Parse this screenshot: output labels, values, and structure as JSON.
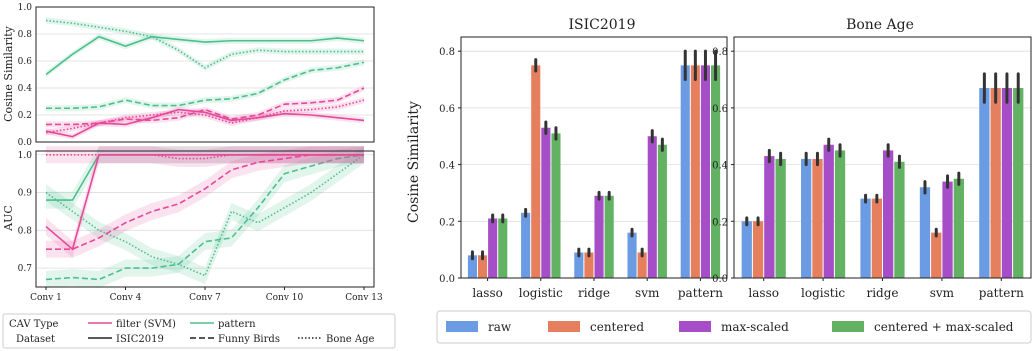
{
  "colors": {
    "filter": "#e6489a",
    "pattern": "#4cbf8c",
    "raw": "#6a9be3",
    "centered": "#e57f5e",
    "max_scaled": "#a64ec8",
    "centered_max_scaled": "#63b163",
    "errorbar": "#333333"
  },
  "chart_data": [
    {
      "type": "line",
      "ylabel": "Cosine Similarity",
      "ylim": [
        0.0,
        1.0
      ],
      "yticks": [
        "0.0",
        "0.2",
        "0.4",
        "0.6",
        "0.8",
        "1.0"
      ],
      "x": [
        1,
        2,
        3,
        4,
        5,
        6,
        7,
        8,
        9,
        10,
        11,
        12,
        13
      ],
      "series": [
        {
          "cav": "pattern",
          "dataset": "ISIC2019",
          "values": [
            0.5,
            0.65,
            0.78,
            0.71,
            0.78,
            0.76,
            0.74,
            0.75,
            0.75,
            0.75,
            0.75,
            0.77,
            0.75
          ]
        },
        {
          "cav": "pattern",
          "dataset": "Funny Birds",
          "values": [
            0.25,
            0.25,
            0.26,
            0.31,
            0.27,
            0.27,
            0.31,
            0.32,
            0.36,
            0.46,
            0.53,
            0.55,
            0.59
          ]
        },
        {
          "cav": "pattern",
          "dataset": "Bone Age",
          "values": [
            0.9,
            0.88,
            0.85,
            0.82,
            0.78,
            0.68,
            0.55,
            0.65,
            0.68,
            0.67,
            0.67,
            0.67,
            0.67
          ]
        },
        {
          "cav": "filter (SVM)",
          "dataset": "ISIC2019",
          "values": [
            0.08,
            0.04,
            0.14,
            0.13,
            0.18,
            0.24,
            0.22,
            0.16,
            0.18,
            0.21,
            0.2,
            0.18,
            0.16
          ]
        },
        {
          "cav": "filter (SVM)",
          "dataset": "Funny Birds",
          "values": [
            0.13,
            0.13,
            0.14,
            0.17,
            0.16,
            0.18,
            0.24,
            0.17,
            0.2,
            0.28,
            0.29,
            0.31,
            0.4
          ]
        },
        {
          "cav": "filter (SVM)",
          "dataset": "Bone Age",
          "values": [
            0.07,
            0.1,
            0.14,
            0.18,
            0.2,
            0.22,
            0.2,
            0.14,
            0.18,
            0.23,
            0.24,
            0.26,
            0.31
          ]
        }
      ]
    },
    {
      "type": "line",
      "ylabel": "AUC",
      "ylim": [
        0.65,
        1.01
      ],
      "yticks": [
        "0.7",
        "0.8",
        "0.9",
        "1.0"
      ],
      "xticks": [
        "Conv 1",
        "Conv 4",
        "Conv 7",
        "Conv 10",
        "Conv 13"
      ],
      "x": [
        1,
        2,
        3,
        4,
        5,
        6,
        7,
        8,
        9,
        10,
        11,
        12,
        13
      ],
      "series": [
        {
          "cav": "pattern",
          "dataset": "ISIC2019",
          "values": [
            0.88,
            0.88,
            1.0,
            1.0,
            1.0,
            1.0,
            1.0,
            1.0,
            1.0,
            1.0,
            1.0,
            1.0,
            1.0
          ]
        },
        {
          "cav": "pattern",
          "dataset": "Funny Birds",
          "values": [
            0.67,
            0.675,
            0.67,
            0.7,
            0.7,
            0.71,
            0.77,
            0.78,
            0.86,
            0.95,
            0.97,
            0.99,
            1.0
          ]
        },
        {
          "cav": "pattern",
          "dataset": "Bone Age",
          "values": [
            0.9,
            0.85,
            0.8,
            0.77,
            0.73,
            0.71,
            0.68,
            0.85,
            0.82,
            0.86,
            0.9,
            0.95,
            1.0
          ]
        },
        {
          "cav": "filter (SVM)",
          "dataset": "ISIC2019",
          "values": [
            0.81,
            0.75,
            1.0,
            1.0,
            1.0,
            1.0,
            1.0,
            1.0,
            1.0,
            1.0,
            1.0,
            1.0,
            1.0
          ]
        },
        {
          "cav": "filter (SVM)",
          "dataset": "Funny Birds",
          "values": [
            0.75,
            0.75,
            0.78,
            0.82,
            0.85,
            0.87,
            0.91,
            0.96,
            0.98,
            0.99,
            1.0,
            1.0,
            1.0
          ]
        },
        {
          "cav": "filter (SVM)",
          "dataset": "Bone Age",
          "values": [
            1.0,
            1.0,
            1.0,
            1.0,
            1.0,
            0.99,
            0.99,
            1.0,
            1.0,
            1.0,
            1.0,
            1.0,
            1.0
          ]
        }
      ]
    },
    {
      "type": "bar",
      "title": "ISIC2019",
      "ylabel": "Cosine Similarity",
      "ylim": [
        0.0,
        0.85
      ],
      "yticks": [
        "0.0",
        "0.2",
        "0.4",
        "0.6",
        "0.8"
      ],
      "categories": [
        "lasso",
        "logistic",
        "ridge",
        "svm",
        "pattern"
      ],
      "series": [
        {
          "name": "raw",
          "values": [
            0.08,
            0.23,
            0.09,
            0.16,
            0.75
          ]
        },
        {
          "name": "centered",
          "values": [
            0.08,
            0.75,
            0.09,
            0.09,
            0.75
          ]
        },
        {
          "name": "max-scaled",
          "values": [
            0.21,
            0.53,
            0.29,
            0.5,
            0.75
          ]
        },
        {
          "name": "centered + max-scaled",
          "values": [
            0.21,
            0.51,
            0.29,
            0.47,
            0.75
          ]
        }
      ]
    },
    {
      "type": "bar",
      "title": "Bone Age",
      "ylim": [
        0.0,
        0.85
      ],
      "yticks": [
        "0.0",
        "0.2",
        "0.4",
        "0.6",
        "0.8"
      ],
      "categories": [
        "lasso",
        "logistic",
        "ridge",
        "svm",
        "pattern"
      ],
      "series": [
        {
          "name": "raw",
          "values": [
            0.2,
            0.42,
            0.28,
            0.32,
            0.67
          ]
        },
        {
          "name": "centered",
          "values": [
            0.2,
            0.42,
            0.28,
            0.16,
            0.67
          ]
        },
        {
          "name": "max-scaled",
          "values": [
            0.43,
            0.47,
            0.45,
            0.34,
            0.67
          ]
        },
        {
          "name": "centered + max-scaled",
          "values": [
            0.42,
            0.45,
            0.41,
            0.35,
            0.67
          ]
        }
      ]
    }
  ],
  "line_legend": {
    "row1_label": "CAV Type",
    "row1_items": [
      "filter (SVM)",
      "pattern"
    ],
    "row2_label": "Dataset",
    "row2_items": [
      "ISIC2019",
      "Funny Birds",
      "Bone Age"
    ]
  },
  "bar_legend": [
    "raw",
    "centered",
    "max-scaled",
    "centered + max-scaled"
  ]
}
